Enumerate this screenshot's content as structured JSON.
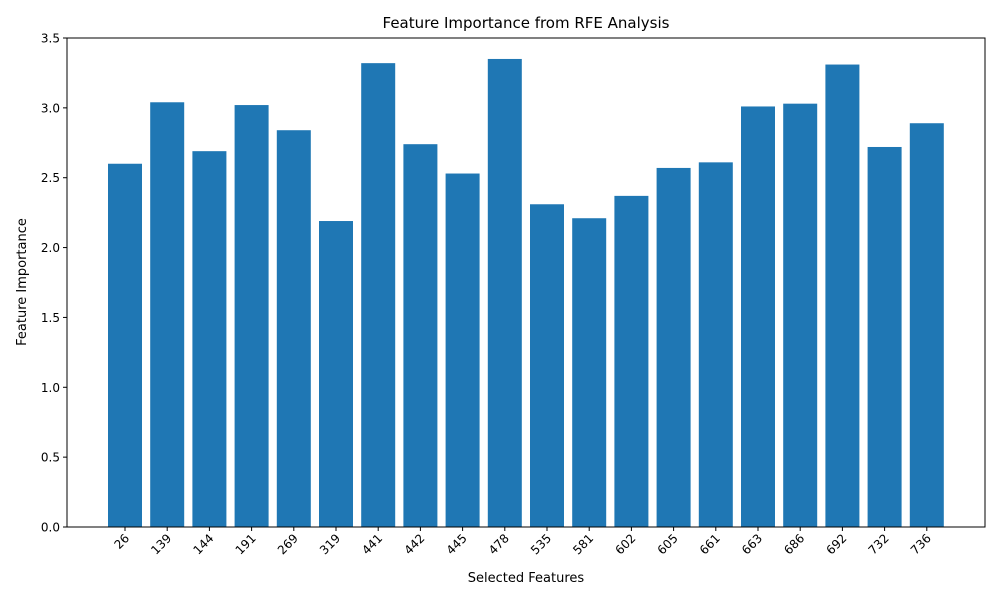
{
  "chart_data": {
    "type": "bar",
    "title": "Feature Importance from RFE Analysis",
    "xlabel": "Selected Features",
    "ylabel": "Feature Importance",
    "categories": [
      "26",
      "139",
      "144",
      "191",
      "269",
      "319",
      "441",
      "442",
      "445",
      "478",
      "535",
      "581",
      "602",
      "605",
      "661",
      "663",
      "686",
      "692",
      "732",
      "736"
    ],
    "values": [
      2.6,
      3.04,
      2.69,
      3.02,
      2.84,
      2.19,
      3.32,
      2.74,
      2.53,
      3.35,
      2.31,
      2.21,
      2.37,
      2.57,
      2.61,
      3.01,
      3.03,
      3.31,
      2.72,
      2.89
    ],
    "ylim": [
      0,
      3.5
    ],
    "yticks": [
      "0.0",
      "0.5",
      "1.0",
      "1.5",
      "2.0",
      "2.5",
      "3.0",
      "3.5"
    ],
    "bar_color": "#1f77b4",
    "grid": false,
    "legend": "none"
  }
}
